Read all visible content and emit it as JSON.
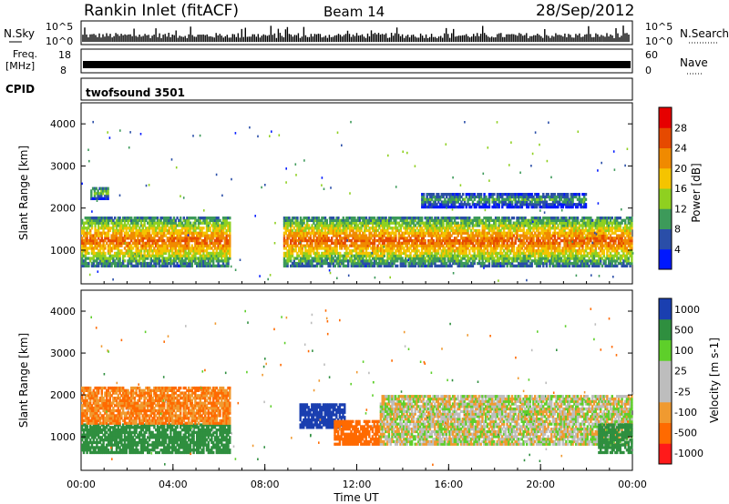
{
  "header": {
    "station": "Rankin Inlet (fitACF)",
    "beam": "Beam 14",
    "date": "28/Sep/2012"
  },
  "panels": {
    "nsky": {
      "left_label": "N.Sky",
      "right_label": "N.Search",
      "ticks_left": [
        "10^5",
        "10^0"
      ],
      "ticks_right": [
        "10^5",
        "10^0"
      ]
    },
    "freq": {
      "label_line1": "Freq.",
      "label_line2": "[MHz]",
      "ticks_left": [
        "18",
        "8"
      ],
      "ticks_right": [
        "60",
        "0"
      ],
      "right_label": "Nave"
    },
    "cpid": {
      "label": "CPID",
      "value": "twofsound 3501"
    }
  },
  "colors": {
    "power_scale": [
      "#0018ff",
      "#2a4ea8",
      "#3d9a5a",
      "#8fd020",
      "#f5c400",
      "#f08a00",
      "#e64a00",
      "#e60000"
    ],
    "velocity_scale": [
      "#ff1a1a",
      "#ff6a00",
      "#f09a30",
      "#bdbdbd",
      "#bdbdbd",
      "#5ecf2a",
      "#2f8f3f",
      "#1a3fb0"
    ]
  },
  "chart_data": [
    {
      "type": "heatmap",
      "name": "Power",
      "ylabel": "Slant Range [km]",
      "xlabel": "",
      "yticks": [
        "1000",
        "2000",
        "3000",
        "4000"
      ],
      "ylim": [
        200,
        4500
      ],
      "xlim": [
        0,
        24
      ],
      "colorbar_label": "Power [dB]",
      "colorbar_ticks": [
        "4",
        "8",
        "12",
        "16",
        "20",
        "24",
        "28"
      ],
      "colorbar_range": [
        0,
        32
      ],
      "features": [
        {
          "t_start": 0.0,
          "t_end": 6.5,
          "range_km": [
            600,
            1800
          ],
          "peak_db": 28
        },
        {
          "t_start": 0.4,
          "t_end": 1.2,
          "range_km": [
            2200,
            2500
          ],
          "peak_db": 18
        },
        {
          "t_start": 8.8,
          "t_end": 24.0,
          "range_km": [
            600,
            1800
          ],
          "peak_db": 28
        },
        {
          "t_start": 14.8,
          "t_end": 22.0,
          "range_km": [
            2000,
            2350
          ],
          "peak_db": 14
        }
      ]
    },
    {
      "type": "heatmap",
      "name": "Velocity",
      "ylabel": "Slant Range [km]",
      "xlabel": "Time UT",
      "xticks": [
        "00:00",
        "04:00",
        "08:00",
        "12:00",
        "16:00",
        "20:00",
        "00:00"
      ],
      "yticks": [
        "1000",
        "2000",
        "3000",
        "4000"
      ],
      "ylim": [
        200,
        4500
      ],
      "xlim": [
        0,
        24
      ],
      "colorbar_label": "Velocity [m s-1]",
      "colorbar_ticks": [
        "1000",
        "500",
        "100",
        "25",
        "-25",
        "-100",
        "-500",
        "-1000"
      ],
      "features": [
        {
          "t_start": 0.0,
          "t_end": 6.5,
          "range_km": [
            600,
            1300
          ],
          "velocity": 200
        },
        {
          "t_start": 0.0,
          "t_end": 6.5,
          "range_km": [
            1300,
            2200
          ],
          "velocity": -100
        },
        {
          "t_start": 9.5,
          "t_end": 11.5,
          "range_km": [
            1200,
            1800
          ],
          "velocity": 800
        },
        {
          "t_start": 11.0,
          "t_end": 13.0,
          "range_km": [
            800,
            1400
          ],
          "velocity": -300
        },
        {
          "t_start": 13.0,
          "t_end": 24.0,
          "range_km": [
            800,
            2000
          ],
          "velocity": 0
        },
        {
          "t_start": 22.5,
          "t_end": 24.0,
          "range_km": [
            600,
            1300
          ],
          "velocity": 200
        }
      ]
    }
  ]
}
